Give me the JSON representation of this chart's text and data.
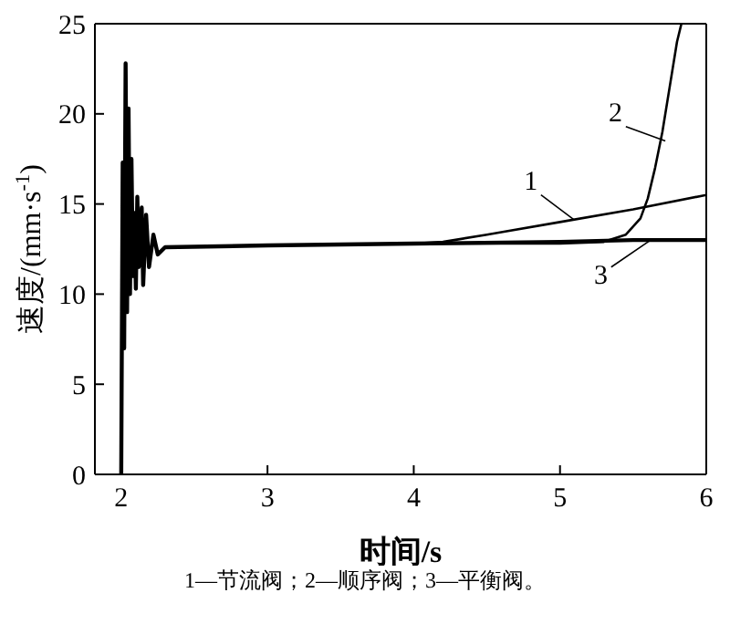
{
  "chart_data": {
    "type": "line",
    "xlabel": "时间/s",
    "ylabel": "速度/(mm·s$^{-1}$)",
    "xlim": [
      1.82,
      6
    ],
    "xticks": [
      2,
      3,
      4,
      5,
      6
    ],
    "ylim": [
      0,
      25
    ],
    "yticks": [
      0,
      5,
      10,
      15,
      20,
      25
    ],
    "marker": "none",
    "line_style": "solid",
    "annotations": [
      "1—节流阀；2—顺序阀；3—平衡阀。"
    ],
    "series": [
      {
        "name": "1",
        "color": "#000000",
        "x": [
          2.0,
          2.01,
          2.02,
          2.03,
          2.04,
          2.05,
          2.06,
          2.07,
          2.08,
          2.09,
          2.1,
          2.11,
          2.12,
          2.14,
          2.15,
          2.17,
          2.19,
          2.22,
          2.25,
          2.3,
          3,
          4,
          4.2,
          4.5,
          5,
          5.5,
          6
        ],
        "values": [
          0,
          17.3,
          7,
          22.8,
          9,
          20.3,
          10,
          17.5,
          11,
          14.5,
          10.3,
          15.4,
          11.5,
          14.8,
          10.5,
          14.4,
          11.5,
          13.3,
          12.2,
          12.6,
          12.7,
          12.8,
          12.9,
          13.3,
          14,
          14.7,
          15.5
        ]
      },
      {
        "name": "2",
        "color": "#000000",
        "x": [
          2.0,
          2.01,
          2.02,
          2.03,
          2.04,
          2.05,
          2.06,
          2.07,
          2.08,
          2.09,
          2.1,
          2.11,
          2.12,
          2.14,
          2.15,
          2.17,
          2.19,
          2.22,
          2.25,
          2.3,
          3,
          4,
          5,
          5.3,
          5.45,
          5.55,
          5.6,
          5.65,
          5.7,
          5.75,
          5.8,
          5.83
        ],
        "values": [
          0,
          17.3,
          7,
          22.8,
          9,
          20.3,
          10,
          17.5,
          11,
          14.5,
          10.3,
          15.4,
          11.5,
          14.8,
          10.5,
          14.4,
          11.5,
          13.3,
          12.2,
          12.6,
          12.7,
          12.8,
          12.8,
          12.9,
          13.3,
          14.2,
          15.3,
          17,
          19,
          21.5,
          24,
          25
        ]
      },
      {
        "name": "3",
        "color": "#000000",
        "x": [
          2.0,
          2.01,
          2.02,
          2.03,
          2.04,
          2.05,
          2.06,
          2.07,
          2.08,
          2.09,
          2.1,
          2.11,
          2.12,
          2.14,
          2.15,
          2.17,
          2.19,
          2.22,
          2.25,
          2.3,
          3,
          4,
          5,
          5.5,
          6
        ],
        "values": [
          0,
          17.3,
          7,
          22.8,
          9,
          20.3,
          10,
          17.5,
          11,
          14.5,
          10.3,
          15.4,
          11.5,
          14.8,
          10.5,
          14.4,
          11.5,
          13.3,
          12.2,
          12.6,
          12.7,
          12.8,
          12.9,
          13.0,
          13.0
        ]
      }
    ]
  }
}
